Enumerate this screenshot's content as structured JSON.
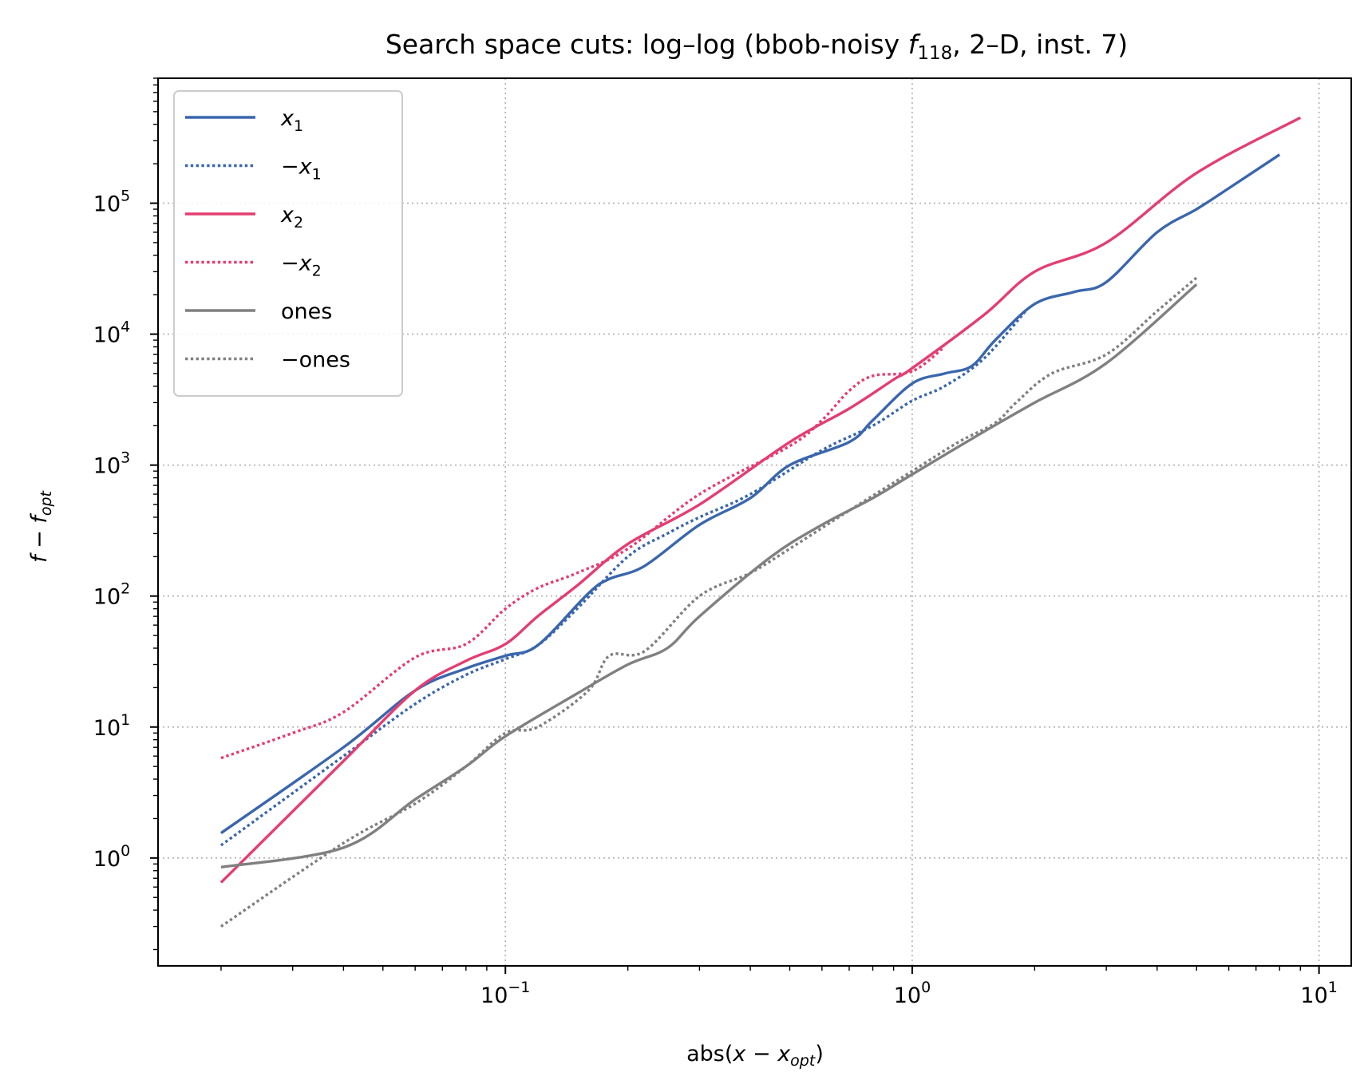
{
  "chart_data": {
    "type": "line",
    "title_main": "Search space cuts: log–log (bbob-noisy ",
    "title_f": "f",
    "title_sub": "118",
    "title_tail": ", 2–D, inst. 7)",
    "xlabel_pre": "abs(",
    "xlabel_var": "x − x",
    "xlabel_sub": "opt",
    "xlabel_post": ")",
    "ylabel_var": "f − f",
    "ylabel_sub": "opt",
    "x_scale": "log",
    "y_scale": "log",
    "xlim": [
      0.014,
      12
    ],
    "ylim": [
      0.15,
      900000
    ],
    "grid": true,
    "legend_position": "upper-left",
    "x_ticks": [
      {
        "value": 0.1,
        "base": "10",
        "exp": "−1"
      },
      {
        "value": 1,
        "base": "10",
        "exp": "0"
      },
      {
        "value": 10,
        "base": "10",
        "exp": "1"
      }
    ],
    "y_ticks": [
      {
        "value": 1,
        "base": "10",
        "exp": "0"
      },
      {
        "value": 10,
        "base": "10",
        "exp": "1"
      },
      {
        "value": 100,
        "base": "10",
        "exp": "2"
      },
      {
        "value": 1000,
        "base": "10",
        "exp": "3"
      },
      {
        "value": 10000,
        "base": "10",
        "exp": "4"
      },
      {
        "value": 100000,
        "base": "10",
        "exp": "5"
      }
    ],
    "series": [
      {
        "name": "x",
        "name_sign": "",
        "name_sub": "1",
        "color": "#3a66ad",
        "dash": "solid",
        "points": [
          [
            0.02,
            1.55
          ],
          [
            0.04,
            7.0
          ],
          [
            0.06,
            19
          ],
          [
            0.08,
            28
          ],
          [
            0.1,
            35
          ],
          [
            0.12,
            42
          ],
          [
            0.16,
            105
          ],
          [
            0.18,
            135
          ],
          [
            0.22,
            170
          ],
          [
            0.3,
            350
          ],
          [
            0.4,
            560
          ],
          [
            0.5,
            1000
          ],
          [
            0.7,
            1500
          ],
          [
            0.8,
            2200
          ],
          [
            1.0,
            4200
          ],
          [
            1.2,
            5000
          ],
          [
            1.4,
            5700
          ],
          [
            1.6,
            9000
          ],
          [
            2.0,
            17000
          ],
          [
            2.5,
            21000
          ],
          [
            3.0,
            25000
          ],
          [
            4.0,
            60000
          ],
          [
            5.0,
            90000
          ],
          [
            6.0,
            130000
          ],
          [
            8.0,
            235000
          ]
        ]
      },
      {
        "name": "x",
        "name_sign": "−",
        "name_sub": "1",
        "color": "#3a66ad",
        "dash": "dotted",
        "points": [
          [
            0.02,
            1.25
          ],
          [
            0.04,
            6.0
          ],
          [
            0.06,
            15
          ],
          [
            0.08,
            25
          ],
          [
            0.1,
            33
          ],
          [
            0.12,
            42
          ],
          [
            0.15,
            80
          ],
          [
            0.2,
            200
          ],
          [
            0.25,
            300
          ],
          [
            0.3,
            400
          ],
          [
            0.4,
            600
          ],
          [
            0.6,
            1300
          ],
          [
            0.8,
            2000
          ],
          [
            1.0,
            3100
          ],
          [
            1.2,
            4000
          ],
          [
            1.5,
            6500
          ],
          [
            1.9,
            15000
          ]
        ]
      },
      {
        "name": "x",
        "name_sign": "",
        "name_sub": "2",
        "color": "#e33e72",
        "dash": "solid",
        "points": [
          [
            0.02,
            0.65
          ],
          [
            0.04,
            5.5
          ],
          [
            0.06,
            19
          ],
          [
            0.08,
            32
          ],
          [
            0.1,
            43
          ],
          [
            0.12,
            70
          ],
          [
            0.15,
            120
          ],
          [
            0.2,
            250
          ],
          [
            0.3,
            500
          ],
          [
            0.5,
            1500
          ],
          [
            0.7,
            2700
          ],
          [
            0.9,
            4500
          ],
          [
            1.0,
            5500
          ],
          [
            1.5,
            14000
          ],
          [
            2.0,
            30000
          ],
          [
            3.0,
            50000
          ],
          [
            5.0,
            170000
          ],
          [
            9.0,
            450000
          ]
        ]
      },
      {
        "name": "x",
        "name_sign": "−",
        "name_sub": "2",
        "color": "#e33e72",
        "dash": "dotted",
        "points": [
          [
            0.02,
            5.8
          ],
          [
            0.03,
            9.0
          ],
          [
            0.04,
            13
          ],
          [
            0.06,
            34
          ],
          [
            0.08,
            43
          ],
          [
            0.1,
            80
          ],
          [
            0.12,
            115
          ],
          [
            0.15,
            150
          ],
          [
            0.2,
            230
          ],
          [
            0.3,
            600
          ],
          [
            0.5,
            1400
          ],
          [
            0.6,
            2200
          ],
          [
            0.7,
            3700
          ],
          [
            0.8,
            4800
          ],
          [
            1.0,
            5200
          ],
          [
            1.2,
            8000
          ]
        ]
      },
      {
        "name": "ones",
        "name_sign": "",
        "name_sub": "",
        "color": "#808080",
        "dash": "solid",
        "points": [
          [
            0.02,
            0.85
          ],
          [
            0.04,
            1.2
          ],
          [
            0.06,
            2.8
          ],
          [
            0.08,
            5.0
          ],
          [
            0.1,
            8.5
          ],
          [
            0.15,
            18
          ],
          [
            0.2,
            30
          ],
          [
            0.25,
            40
          ],
          [
            0.3,
            70
          ],
          [
            0.45,
            200
          ],
          [
            0.6,
            350
          ],
          [
            0.8,
            560
          ],
          [
            1.0,
            850
          ],
          [
            1.5,
            1800
          ],
          [
            2.0,
            3000
          ],
          [
            3.0,
            6000
          ],
          [
            5.0,
            24000
          ]
        ]
      },
      {
        "name": "ones",
        "name_sign": "−",
        "name_sub": "",
        "color": "#808080",
        "dash": "dotted",
        "points": [
          [
            0.02,
            0.3
          ],
          [
            0.04,
            1.3
          ],
          [
            0.06,
            2.6
          ],
          [
            0.08,
            5.0
          ],
          [
            0.1,
            9.0
          ],
          [
            0.12,
            10
          ],
          [
            0.16,
            19
          ],
          [
            0.18,
            35
          ],
          [
            0.22,
            38
          ],
          [
            0.3,
            100
          ],
          [
            0.4,
            150
          ],
          [
            0.5,
            230
          ],
          [
            0.7,
            450
          ],
          [
            1.0,
            900
          ],
          [
            1.3,
            1500
          ],
          [
            1.6,
            2100
          ],
          [
            1.8,
            3000
          ],
          [
            2.2,
            5000
          ],
          [
            3.0,
            7000
          ],
          [
            4.0,
            15000
          ],
          [
            5.0,
            27000
          ]
        ]
      }
    ]
  }
}
